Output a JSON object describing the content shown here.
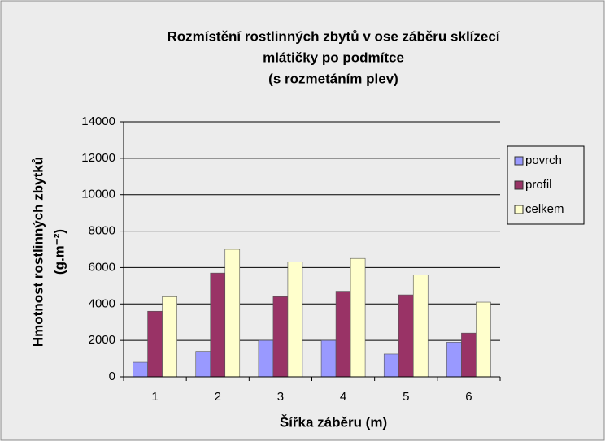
{
  "chart_data": {
    "type": "bar",
    "title": [
      "Rozmístění rostlinných zbytů v ose záběru sklízecí",
      "mlátičky po podmítce",
      "(s rozmetáním plev)"
    ],
    "x_label": "Šířka záběru (m)",
    "y_label": [
      "Hmotnost rostlinných zbytků",
      "(g.m⁻²)"
    ],
    "categories": [
      "1",
      "2",
      "3",
      "4",
      "5",
      "6"
    ],
    "series": [
      {
        "name": "povrch",
        "color": "#9999ff",
        "values": [
          800,
          1400,
          2000,
          2000,
          1250,
          1900
        ]
      },
      {
        "name": "profil",
        "color": "#993366",
        "values": [
          3600,
          5700,
          4400,
          4700,
          4500,
          2400
        ]
      },
      {
        "name": "celkem",
        "color": "#ffffcc",
        "values": [
          4400,
          7000,
          6300,
          6500,
          5600,
          4100
        ]
      }
    ],
    "ylim": [
      0,
      14000
    ],
    "yticks": [
      0,
      2000,
      4000,
      6000,
      8000,
      10000,
      12000,
      14000
    ],
    "grid": true,
    "legend": "right"
  }
}
